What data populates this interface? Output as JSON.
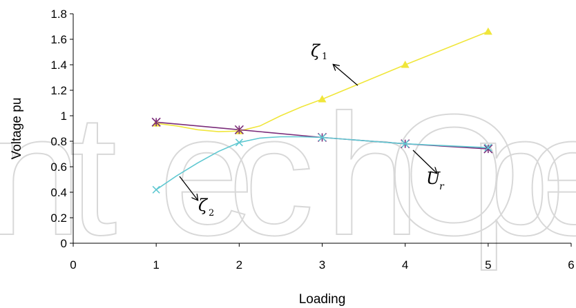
{
  "watermark_text": "IntechOpen",
  "chart_data": {
    "type": "line",
    "title": "",
    "xlabel": "Loading",
    "ylabel": "Voltage pu",
    "xlim": [
      0,
      6
    ],
    "ylim": [
      0,
      1.8
    ],
    "x_ticks": [
      "0",
      "1",
      "2",
      "3",
      "4",
      "5",
      "6"
    ],
    "y_ticks": [
      "0",
      "0.2",
      "0.4",
      "0.6",
      "0.8",
      "1",
      "1.2",
      "1.4",
      "1.6",
      "1.8"
    ],
    "grid": false,
    "legend": "none",
    "series": [
      {
        "name": "ζ1",
        "color": "#f0e63a",
        "marker": "triangle",
        "x": [
          1,
          2,
          3,
          4,
          5
        ],
        "y": [
          0.94,
          0.88,
          1.13,
          1.4,
          1.66
        ],
        "curve": [
          [
            1,
            0.94
          ],
          [
            1.25,
            0.92
          ],
          [
            1.5,
            0.89
          ],
          [
            1.75,
            0.875
          ],
          [
            2,
            0.88
          ],
          [
            2.25,
            0.92
          ],
          [
            2.5,
            1.0
          ],
          [
            2.75,
            1.07
          ],
          [
            3,
            1.13
          ],
          [
            4,
            1.4
          ],
          [
            5,
            1.66
          ]
        ]
      },
      {
        "name": "Ur",
        "color": "#7a2b79",
        "marker": "asterisk",
        "x": [
          1,
          2,
          3,
          4,
          5
        ],
        "y": [
          0.95,
          0.89,
          0.83,
          0.78,
          0.74
        ],
        "curve": [
          [
            1,
            0.95
          ],
          [
            2,
            0.89
          ],
          [
            3,
            0.83
          ],
          [
            4,
            0.78
          ],
          [
            5,
            0.74
          ]
        ]
      },
      {
        "name": "ζ2",
        "color": "#5fc8d1",
        "marker": "x",
        "x": [
          1,
          2,
          3,
          4,
          5
        ],
        "y": [
          0.42,
          0.79,
          0.83,
          0.78,
          0.75
        ],
        "curve": [
          [
            1,
            0.42
          ],
          [
            1.25,
            0.53
          ],
          [
            1.5,
            0.63
          ],
          [
            1.75,
            0.72
          ],
          [
            2,
            0.79
          ],
          [
            2.25,
            0.825
          ],
          [
            2.5,
            0.835
          ],
          [
            2.75,
            0.835
          ],
          [
            3,
            0.83
          ],
          [
            4,
            0.78
          ],
          [
            5,
            0.75
          ]
        ]
      }
    ],
    "annotations": [
      {
        "main": "ζ",
        "sub": "1",
        "series": "ζ1"
      },
      {
        "main": "ζ",
        "sub": "2",
        "series": "ζ2"
      },
      {
        "main": "U",
        "sub": "r",
        "series": "Ur"
      }
    ]
  }
}
